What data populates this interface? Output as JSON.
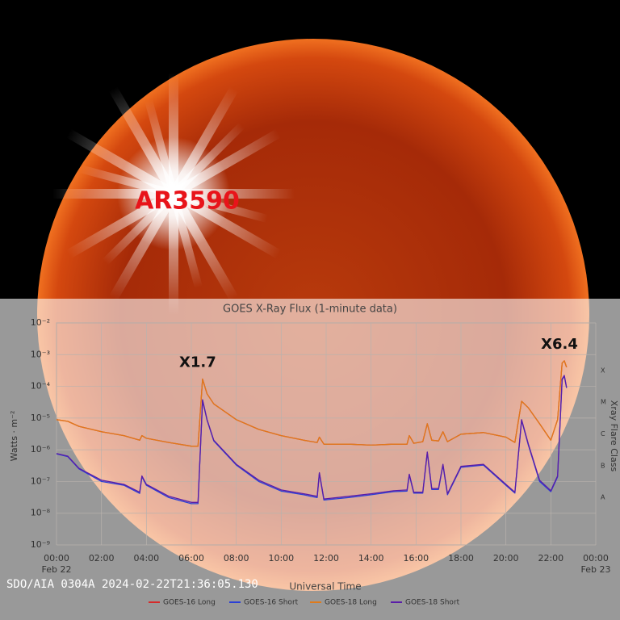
{
  "image_caption": "SDO/AIA 0304A 2024-02-22T21:36:05.130",
  "region_label": "AR3590",
  "chart_data": {
    "type": "line",
    "title": "GOES X-Ray Flux (1-minute data)",
    "x_label": "Universal Time",
    "y_label": "Watts · m⁻²",
    "y2_label": "Xray Flare Class",
    "flare_classes": [
      "X",
      "M",
      "C",
      "B",
      "A"
    ],
    "yscale": "log",
    "grid": true,
    "ylim": [
      1e-09,
      0.01
    ],
    "yticks": [
      {
        "value": 0.01,
        "label": "10⁻²"
      },
      {
        "value": 0.001,
        "label": "10⁻³"
      },
      {
        "value": 0.0001,
        "label": "10⁻⁴"
      },
      {
        "value": 1e-05,
        "label": "10⁻⁵"
      },
      {
        "value": 1e-06,
        "label": "10⁻⁶"
      },
      {
        "value": 1e-07,
        "label": "10⁻⁷"
      },
      {
        "value": 1e-08,
        "label": "10⁻⁸"
      },
      {
        "value": 1e-09,
        "label": "10⁻⁹"
      }
    ],
    "xlim": [
      0,
      24
    ],
    "xticks": [
      {
        "value": 0,
        "label": "00:00"
      },
      {
        "value": 2,
        "label": "02:00"
      },
      {
        "value": 4,
        "label": "04:00"
      },
      {
        "value": 6,
        "label": "06:00"
      },
      {
        "value": 8,
        "label": "08:00"
      },
      {
        "value": 10,
        "label": "10:00"
      },
      {
        "value": 12,
        "label": "12:00"
      },
      {
        "value": 14,
        "label": "14:00"
      },
      {
        "value": 16,
        "label": "16:00"
      },
      {
        "value": 18,
        "label": "18:00"
      },
      {
        "value": 20,
        "label": "20:00"
      },
      {
        "value": 22,
        "label": "22:00"
      },
      {
        "value": 24,
        "label": "00:00"
      }
    ],
    "x_date_labels": [
      {
        "value": 0,
        "label": "Feb 22"
      },
      {
        "value": 24,
        "label": "Feb 23"
      }
    ],
    "annotations": [
      {
        "label": "X1.7",
        "x": 6.5
      },
      {
        "label": "X6.4",
        "x": 22.6
      }
    ],
    "x": [
      0,
      0.5,
      1,
      2,
      3,
      3.7,
      3.8,
      4,
      5,
      6,
      6.3,
      6.5,
      6.7,
      7,
      8,
      9,
      10,
      11,
      11.6,
      11.7,
      11.9,
      13,
      14,
      15,
      15.6,
      15.7,
      15.9,
      16.3,
      16.5,
      16.7,
      17,
      17.2,
      17.4,
      18,
      19,
      20,
      20.4,
      20.7,
      21,
      21.5,
      22,
      22.3,
      22.5,
      22.6,
      22.7
    ],
    "series": [
      {
        "name": "GOES-16 Long",
        "color": "#d62a2a",
        "values": [
          8.9e-06,
          7.9e-06,
          5.5e-06,
          3.7e-06,
          2.8e-06,
          2e-06,
          2.8e-06,
          2.3e-06,
          1.7e-06,
          1.3e-06,
          1.3e-06,
          0.00017,
          5.8e-05,
          2.8e-05,
          8.9e-06,
          4.4e-06,
          2.8e-06,
          2e-06,
          1.7e-06,
          2.5e-06,
          1.5e-06,
          1.5e-06,
          1.4e-06,
          1.5e-06,
          1.5e-06,
          2.8e-06,
          1.6e-06,
          1.8e-06,
          6.6e-06,
          2e-06,
          1.9e-06,
          3.7e-06,
          1.8e-06,
          3.1e-06,
          3.5e-06,
          2.5e-06,
          1.7e-06,
          3.4e-05,
          2.1e-05,
          6.6e-06,
          2e-06,
          8.9e-06,
          0.00054,
          0.00064,
          0.0004
        ]
      },
      {
        "name": "GOES-16 Short",
        "color": "#2a3fd6",
        "values": [
          7.4e-07,
          6.1e-07,
          2.5e-07,
          1e-07,
          7.6e-08,
          4.2e-08,
          1.4e-07,
          7.6e-08,
          3.1e-08,
          2e-08,
          2e-08,
          3.6e-05,
          8.5e-06,
          1.9e-06,
          3.3e-07,
          1e-07,
          5e-08,
          3.8e-08,
          3.1e-08,
          1.8e-07,
          2.6e-08,
          3.1e-08,
          3.8e-08,
          4.8e-08,
          5e-08,
          1.6e-07,
          4.3e-08,
          4.3e-08,
          8.1e-07,
          5.6e-08,
          5.6e-08,
          3.3e-07,
          3.8e-08,
          2.8e-07,
          3.3e-07,
          7.6e-08,
          4.3e-08,
          8.5e-06,
          1.4e-06,
          1e-07,
          4.8e-08,
          1.4e-07,
          0.00016,
          0.00021,
          8.9e-05
        ]
      },
      {
        "name": "GOES-18 Long",
        "color": "#e07a1a",
        "values": [
          8.9e-06,
          7.9e-06,
          5.5e-06,
          3.7e-06,
          2.8e-06,
          2e-06,
          2.8e-06,
          2.3e-06,
          1.7e-06,
          1.3e-06,
          1.3e-06,
          0.00017,
          5.8e-05,
          2.8e-05,
          8.9e-06,
          4.4e-06,
          2.8e-06,
          2e-06,
          1.7e-06,
          2.5e-06,
          1.5e-06,
          1.5e-06,
          1.4e-06,
          1.5e-06,
          1.5e-06,
          2.8e-06,
          1.6e-06,
          1.8e-06,
          6.6e-06,
          2e-06,
          1.9e-06,
          3.7e-06,
          1.8e-06,
          3.1e-06,
          3.5e-06,
          2.5e-06,
          1.7e-06,
          3.4e-05,
          2.1e-05,
          6.6e-06,
          2e-06,
          8.9e-06,
          0.00054,
          0.00064,
          0.0004
        ]
      },
      {
        "name": "GOES-18 Short",
        "color": "#5a1ca8",
        "values": [
          7.6e-07,
          6.3e-07,
          2.6e-07,
          1.1e-07,
          8.1e-08,
          4.6e-08,
          1.5e-07,
          8.1e-08,
          3.4e-08,
          2.2e-08,
          2.2e-08,
          3.8e-05,
          8.9e-06,
          2e-06,
          3.5e-07,
          1.1e-07,
          5.4e-08,
          4.1e-08,
          3.4e-08,
          1.9e-07,
          2.8e-08,
          3.4e-08,
          4.1e-08,
          5.1e-08,
          5.4e-08,
          1.7e-07,
          4.6e-08,
          4.6e-08,
          8.5e-07,
          6e-08,
          6e-08,
          3.5e-07,
          4.1e-08,
          3e-07,
          3.5e-07,
          8.1e-08,
          4.6e-08,
          8.9e-06,
          1.5e-06,
          1.1e-07,
          5.1e-08,
          1.5e-07,
          0.00017,
          0.00022,
          9.3e-05
        ]
      }
    ]
  }
}
